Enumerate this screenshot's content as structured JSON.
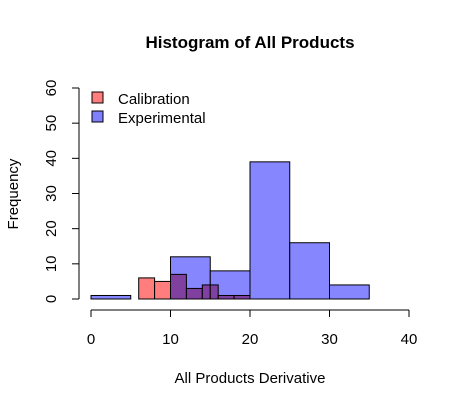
{
  "chart_data": {
    "type": "bar",
    "title": "Histogram of All Products",
    "xlabel": "All Products Derivative",
    "ylabel": "Frequency",
    "xlim": [
      0,
      40
    ],
    "ylim": [
      0,
      60
    ],
    "x_ticks": [
      "0",
      "10",
      "20",
      "30",
      "40"
    ],
    "y_ticks": [
      "0",
      "10",
      "20",
      "30",
      "40",
      "50",
      "60"
    ],
    "legend_position": "top-left",
    "series": [
      {
        "name": "Calibration",
        "color": "#ff7d7d",
        "bins": [
          {
            "x0": 6,
            "x1": 8,
            "value": 6
          },
          {
            "x0": 8,
            "x1": 10,
            "value": 5
          },
          {
            "x0": 10,
            "x1": 12,
            "value": 7
          },
          {
            "x0": 12,
            "x1": 14,
            "value": 3
          },
          {
            "x0": 14,
            "x1": 16,
            "value": 4
          },
          {
            "x0": 16,
            "x1": 18,
            "value": 1
          },
          {
            "x0": 18,
            "x1": 20,
            "value": 1
          }
        ]
      },
      {
        "name": "Experimental",
        "color": "#8080ff",
        "bins": [
          {
            "x0": 0,
            "x1": 5,
            "value": 1
          },
          {
            "x0": 5,
            "x1": 10,
            "value": 0
          },
          {
            "x0": 10,
            "x1": 15,
            "value": 12
          },
          {
            "x0": 15,
            "x1": 20,
            "value": 8
          },
          {
            "x0": 20,
            "x1": 25,
            "value": 39
          },
          {
            "x0": 25,
            "x1": 30,
            "value": 16
          },
          {
            "x0": 30,
            "x1": 35,
            "value": 4
          }
        ]
      }
    ],
    "overlap_color": "#8040a0"
  }
}
